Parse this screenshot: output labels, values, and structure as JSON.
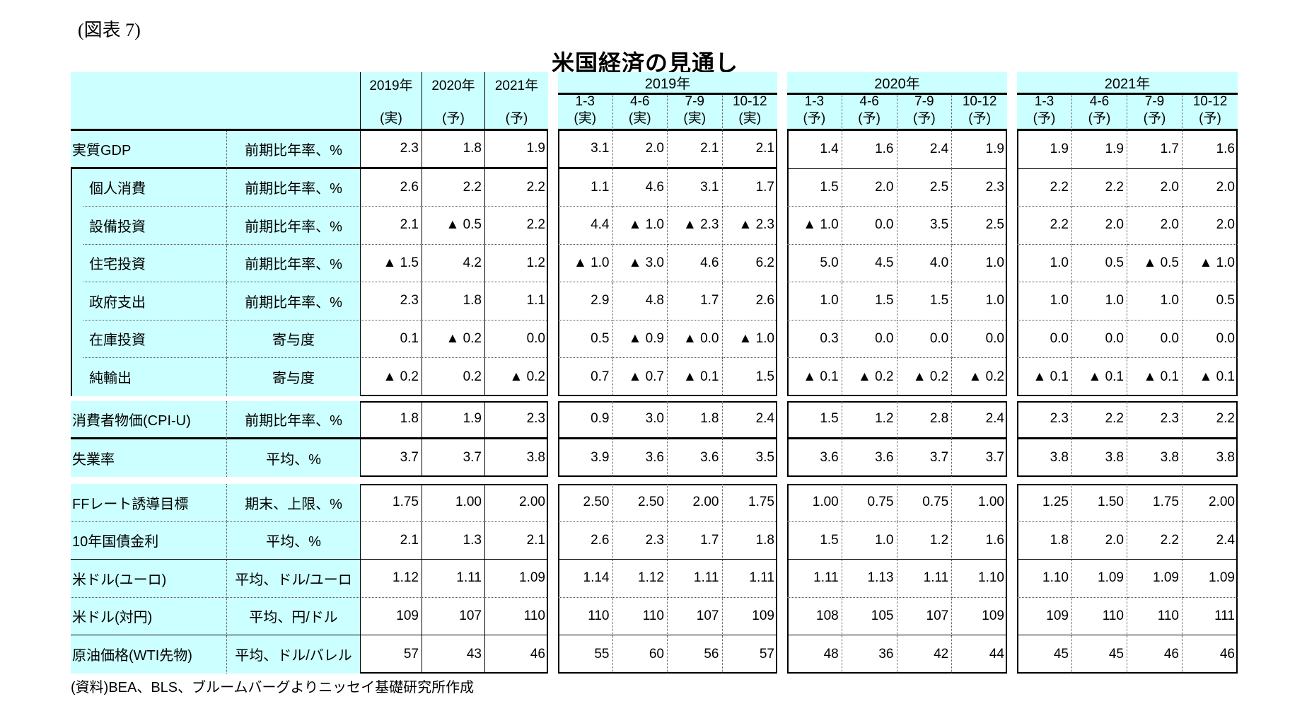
{
  "figure_label": "(図表 7)",
  "title": "米国経済の見通し",
  "source_note": "(資料)BEA、BLS、ブルームバーグよりニッセイ基礎研究所作成",
  "colors": {
    "header_fill": "#ccffff",
    "border": "#000000"
  },
  "negative_marker": "▲",
  "annual_headers": [
    {
      "year": "2019年",
      "type": "(実)"
    },
    {
      "year": "2020年",
      "type": "(予)"
    },
    {
      "year": "2021年",
      "type": "(予)"
    }
  ],
  "quarter_blocks": [
    {
      "year": "2019年",
      "quarters": [
        {
          "period": "1-3",
          "type": "(実)"
        },
        {
          "period": "4-6",
          "type": "(実)"
        },
        {
          "period": "7-9",
          "type": "(実)"
        },
        {
          "period": "10-12",
          "type": "(実)"
        }
      ]
    },
    {
      "year": "2020年",
      "quarters": [
        {
          "period": "1-3",
          "type": "(予)"
        },
        {
          "period": "4-6",
          "type": "(予)"
        },
        {
          "period": "7-9",
          "type": "(予)"
        },
        {
          "period": "10-12",
          "type": "(予)"
        }
      ]
    },
    {
      "year": "2021年",
      "quarters": [
        {
          "period": "1-3",
          "type": "(予)"
        },
        {
          "period": "4-6",
          "type": "(予)"
        },
        {
          "period": "7-9",
          "type": "(予)"
        },
        {
          "period": "10-12",
          "type": "(予)"
        }
      ]
    }
  ],
  "rows": [
    {
      "label": "実質GDP",
      "unit": "前期比年率、%",
      "annual": [
        "2.3",
        "1.8",
        "1.9"
      ],
      "q2019": [
        "3.1",
        "2.0",
        "2.1",
        "2.1"
      ],
      "q2020": [
        "1.4",
        "1.6",
        "2.4",
        "1.9"
      ],
      "q2021": [
        "1.9",
        "1.9",
        "1.7",
        "1.6"
      ]
    },
    {
      "label": "個人消費",
      "unit": "前期比年率、%",
      "annual": [
        "2.6",
        "2.2",
        "2.2"
      ],
      "q2019": [
        "1.1",
        "4.6",
        "3.1",
        "1.7"
      ],
      "q2020": [
        "1.5",
        "2.0",
        "2.5",
        "2.3"
      ],
      "q2021": [
        "2.2",
        "2.2",
        "2.0",
        "2.0"
      ]
    },
    {
      "label": "設備投資",
      "unit": "前期比年率、%",
      "annual": [
        "2.1",
        "▲ 0.5",
        "2.2"
      ],
      "q2019": [
        "4.4",
        "▲ 1.0",
        "▲ 2.3",
        "▲ 2.3"
      ],
      "q2020": [
        "▲ 1.0",
        "0.0",
        "3.5",
        "2.5"
      ],
      "q2021": [
        "2.2",
        "2.0",
        "2.0",
        "2.0"
      ]
    },
    {
      "label": "住宅投資",
      "unit": "前期比年率、%",
      "annual": [
        "▲ 1.5",
        "4.2",
        "1.2"
      ],
      "q2019": [
        "▲ 1.0",
        "▲ 3.0",
        "4.6",
        "6.2"
      ],
      "q2020": [
        "5.0",
        "4.5",
        "4.0",
        "1.0"
      ],
      "q2021": [
        "1.0",
        "0.5",
        "▲ 0.5",
        "▲ 1.0"
      ]
    },
    {
      "label": "政府支出",
      "unit": "前期比年率、%",
      "annual": [
        "2.3",
        "1.8",
        "1.1"
      ],
      "q2019": [
        "2.9",
        "4.8",
        "1.7",
        "2.6"
      ],
      "q2020": [
        "1.0",
        "1.5",
        "1.5",
        "1.0"
      ],
      "q2021": [
        "1.0",
        "1.0",
        "1.0",
        "0.5"
      ]
    },
    {
      "label": "在庫投資",
      "unit": "寄与度",
      "annual": [
        "0.1",
        "▲ 0.2",
        "0.0"
      ],
      "q2019": [
        "0.5",
        "▲ 0.9",
        "▲ 0.0",
        "▲ 1.0"
      ],
      "q2020": [
        "0.3",
        "0.0",
        "0.0",
        "0.0"
      ],
      "q2021": [
        "0.0",
        "0.0",
        "0.0",
        "0.0"
      ]
    },
    {
      "label": "純輸出",
      "unit": "寄与度",
      "annual": [
        "▲ 0.2",
        "0.2",
        "▲ 0.2"
      ],
      "q2019": [
        "0.7",
        "▲ 0.7",
        "▲ 0.1",
        "1.5"
      ],
      "q2020": [
        "▲ 0.1",
        "▲ 0.2",
        "▲ 0.2",
        "▲ 0.2"
      ],
      "q2021": [
        "▲ 0.1",
        "▲ 0.1",
        "▲ 0.1",
        "▲ 0.1"
      ]
    },
    {
      "label": "消費者物価(CPI-U)",
      "unit": "前期比年率、%",
      "annual": [
        "1.8",
        "1.9",
        "2.3"
      ],
      "q2019": [
        "0.9",
        "3.0",
        "1.8",
        "2.4"
      ],
      "q2020": [
        "1.5",
        "1.2",
        "2.8",
        "2.4"
      ],
      "q2021": [
        "2.3",
        "2.2",
        "2.3",
        "2.2"
      ]
    },
    {
      "label": "失業率",
      "unit": "平均、%",
      "annual": [
        "3.7",
        "3.7",
        "3.8"
      ],
      "q2019": [
        "3.9",
        "3.6",
        "3.6",
        "3.5"
      ],
      "q2020": [
        "3.6",
        "3.6",
        "3.7",
        "3.7"
      ],
      "q2021": [
        "3.8",
        "3.8",
        "3.8",
        "3.8"
      ]
    },
    {
      "label": "FFレート誘導目標",
      "unit": "期末、上限、%",
      "annual": [
        "1.75",
        "1.00",
        "2.00"
      ],
      "q2019": [
        "2.50",
        "2.50",
        "2.00",
        "1.75"
      ],
      "q2020": [
        "1.00",
        "0.75",
        "0.75",
        "1.00"
      ],
      "q2021": [
        "1.25",
        "1.50",
        "1.75",
        "2.00"
      ]
    },
    {
      "label": "10年国債金利",
      "unit": "平均、%",
      "annual": [
        "2.1",
        "1.3",
        "2.1"
      ],
      "q2019": [
        "2.6",
        "2.3",
        "1.7",
        "1.8"
      ],
      "q2020": [
        "1.5",
        "1.0",
        "1.2",
        "1.6"
      ],
      "q2021": [
        "1.8",
        "2.0",
        "2.2",
        "2.4"
      ]
    },
    {
      "label": "米ドル(ユーロ)",
      "unit": "平均、ドル/ユーロ",
      "annual": [
        "1.12",
        "1.11",
        "1.09"
      ],
      "q2019": [
        "1.14",
        "1.12",
        "1.11",
        "1.11"
      ],
      "q2020": [
        "1.11",
        "1.13",
        "1.11",
        "1.10"
      ],
      "q2021": [
        "1.10",
        "1.09",
        "1.09",
        "1.09"
      ]
    },
    {
      "label": "米ドル(対円)",
      "unit": "平均、円/ドル",
      "annual": [
        "109",
        "107",
        "110"
      ],
      "q2019": [
        "110",
        "110",
        "107",
        "109"
      ],
      "q2020": [
        "108",
        "105",
        "107",
        "109"
      ],
      "q2021": [
        "109",
        "110",
        "110",
        "111"
      ]
    },
    {
      "label": "原油価格(WTI先物)",
      "unit": "平均、ドル/バレル",
      "annual": [
        "57",
        "43",
        "46"
      ],
      "q2019": [
        "55",
        "60",
        "56",
        "57"
      ],
      "q2020": [
        "48",
        "36",
        "42",
        "44"
      ],
      "q2021": [
        "45",
        "45",
        "46",
        "46"
      ]
    }
  ]
}
